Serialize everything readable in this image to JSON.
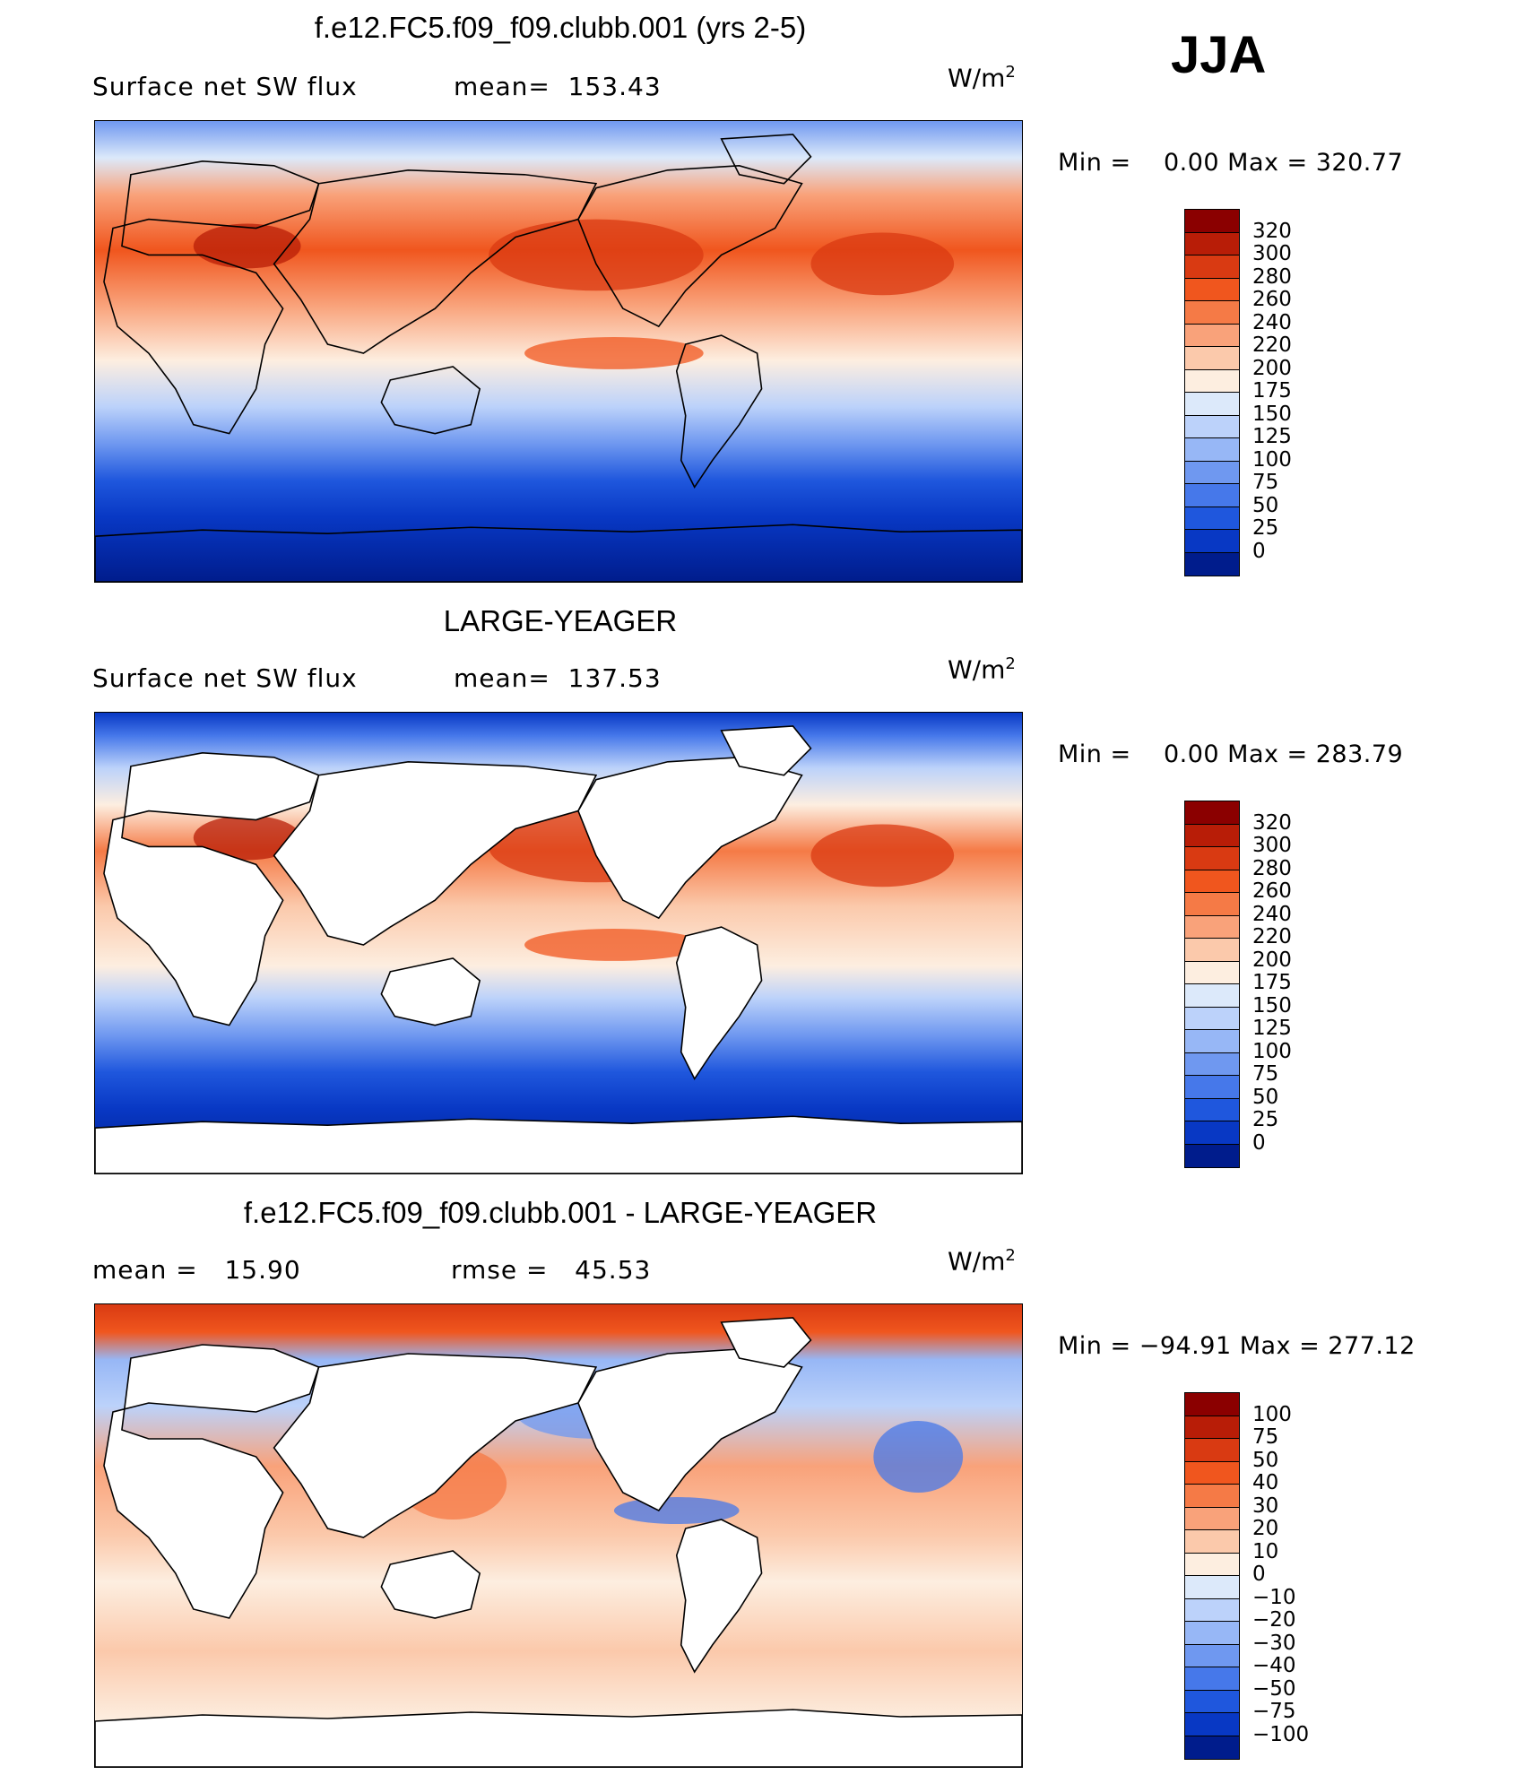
{
  "season": "JJA",
  "panels": [
    {
      "title": "f.e12.FC5.f09_f09.clubb.001 (yrs 2-5)",
      "left_label": "Surface net SW flux",
      "mid_label": "mean=  153.43",
      "units_main": "W/m",
      "units_sup": "2",
      "minmax": "Min =    0.00 Max = 320.77",
      "ticks": [
        "320",
        "300",
        "280",
        "260",
        "240",
        "220",
        "200",
        "175",
        "150",
        "125",
        "100",
        "75",
        "50",
        "25",
        "0"
      ],
      "colors": [
        "#8b0000",
        "#b81d07",
        "#d93a12",
        "#f0561e",
        "#f57a46",
        "#f9a27a",
        "#fbc9ab",
        "#fdeee0",
        "#dce9fa",
        "#bcd2fa",
        "#97b7f6",
        "#6f98f0",
        "#4678ea",
        "#1f57dd",
        "#0838c4",
        "#001c8c"
      ],
      "land_white": false
    },
    {
      "title": "LARGE-YEAGER",
      "left_label": "Surface net SW flux",
      "mid_label": "mean=  137.53",
      "units_main": "W/m",
      "units_sup": "2",
      "minmax": "Min =    0.00 Max = 283.79",
      "ticks": [
        "320",
        "300",
        "280",
        "260",
        "240",
        "220",
        "200",
        "175",
        "150",
        "125",
        "100",
        "75",
        "50",
        "25",
        "0"
      ],
      "colors": [
        "#8b0000",
        "#b81d07",
        "#d93a12",
        "#f0561e",
        "#f57a46",
        "#f9a27a",
        "#fbc9ab",
        "#fdeee0",
        "#dce9fa",
        "#bcd2fa",
        "#97b7f6",
        "#6f98f0",
        "#4678ea",
        "#1f57dd",
        "#0838c4",
        "#001c8c"
      ],
      "land_white": true
    },
    {
      "title": "f.e12.FC5.f09_f09.clubb.001 - LARGE-YEAGER",
      "left_label": "mean =   15.90",
      "mid_label": "rmse =   45.53",
      "units_main": "W/m",
      "units_sup": "2",
      "minmax": "Min = −94.91 Max = 277.12",
      "ticks": [
        "100",
        "75",
        "50",
        "40",
        "30",
        "20",
        "10",
        "0",
        "−10",
        "−20",
        "−30",
        "−40",
        "−50",
        "−75",
        "−100"
      ],
      "colors": [
        "#8b0000",
        "#b81d07",
        "#d93a12",
        "#f0561e",
        "#f57a46",
        "#f9a27a",
        "#fbc9ab",
        "#fdeee0",
        "#dce9fa",
        "#bcd2fa",
        "#97b7f6",
        "#6f98f0",
        "#4678ea",
        "#1f57dd",
        "#0838c4",
        "#001c8c"
      ],
      "land_white": true
    }
  ]
}
